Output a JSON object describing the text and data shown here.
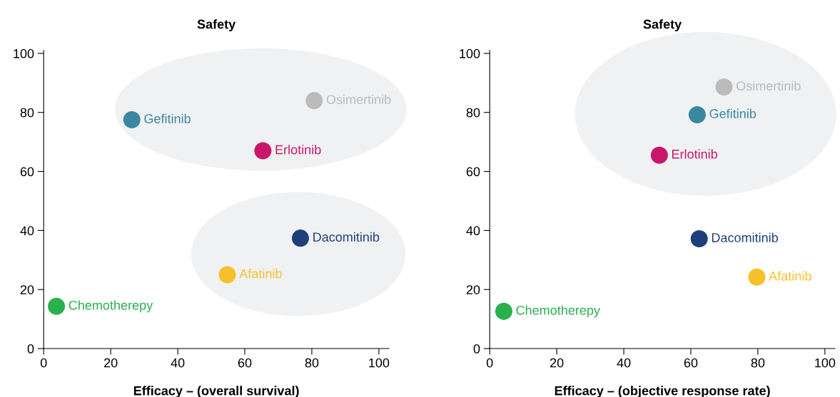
{
  "chart_data": [
    {
      "type": "scatter",
      "title": "Safety",
      "xlabel": "Efficacy – (overall survival)",
      "xlim": [
        0,
        103
      ],
      "ylim": [
        0,
        101
      ],
      "xticks": [
        0,
        20,
        40,
        60,
        80,
        100
      ],
      "yticks": [
        0,
        20,
        40,
        60,
        80,
        100
      ],
      "grid": false,
      "legend": false,
      "marker": "circle",
      "series": [
        {
          "name": "Osimertinib",
          "color": "#bbbbbb",
          "x": [
            80.7
          ],
          "values": [
            84
          ]
        },
        {
          "name": "Gefitinib",
          "color": "#3a87a0",
          "x": [
            26.3
          ],
          "values": [
            77.5
          ]
        },
        {
          "name": "Erlotinib",
          "color": "#c8176a",
          "x": [
            65.4
          ],
          "values": [
            67
          ]
        },
        {
          "name": "Dacomitinib",
          "color": "#1f3f7a",
          "x": [
            76.6
          ],
          "values": [
            37.4
          ]
        },
        {
          "name": "Afatinib",
          "color": "#f5c02a",
          "x": [
            54.8
          ],
          "values": [
            25
          ]
        },
        {
          "name": "Chemotherepy",
          "color": "#2bb04f",
          "x": [
            3.8
          ],
          "values": [
            14.3
          ]
        }
      ]
    },
    {
      "type": "scatter",
      "title": "Safety",
      "xlabel": "Efficacy – (objective response rate)",
      "xlim": [
        0,
        103
      ],
      "ylim": [
        0,
        101
      ],
      "xticks": [
        0,
        20,
        40,
        60,
        80,
        100
      ],
      "yticks": [
        0,
        20,
        40,
        60,
        80,
        100
      ],
      "grid": false,
      "legend": false,
      "marker": "circle",
      "series": [
        {
          "name": "Osimertinib",
          "color": "#bbbbbb",
          "x": [
            69.9
          ],
          "values": [
            88.6
          ]
        },
        {
          "name": "Gefitinib",
          "color": "#3a87a0",
          "x": [
            61.9
          ],
          "values": [
            79.2
          ]
        },
        {
          "name": "Erlotinib",
          "color": "#c8176a",
          "x": [
            50.6
          ],
          "values": [
            65.5
          ]
        },
        {
          "name": "Dacomitinib",
          "color": "#1f3f7a",
          "x": [
            62.5
          ],
          "values": [
            37.2
          ]
        },
        {
          "name": "Afatinib",
          "color": "#f5c02a",
          "x": [
            79.7
          ],
          "values": [
            24.2
          ]
        },
        {
          "name": "Chemotherepy",
          "color": "#2bb04f",
          "x": [
            4.2
          ],
          "values": [
            12.6
          ]
        }
      ]
    }
  ]
}
